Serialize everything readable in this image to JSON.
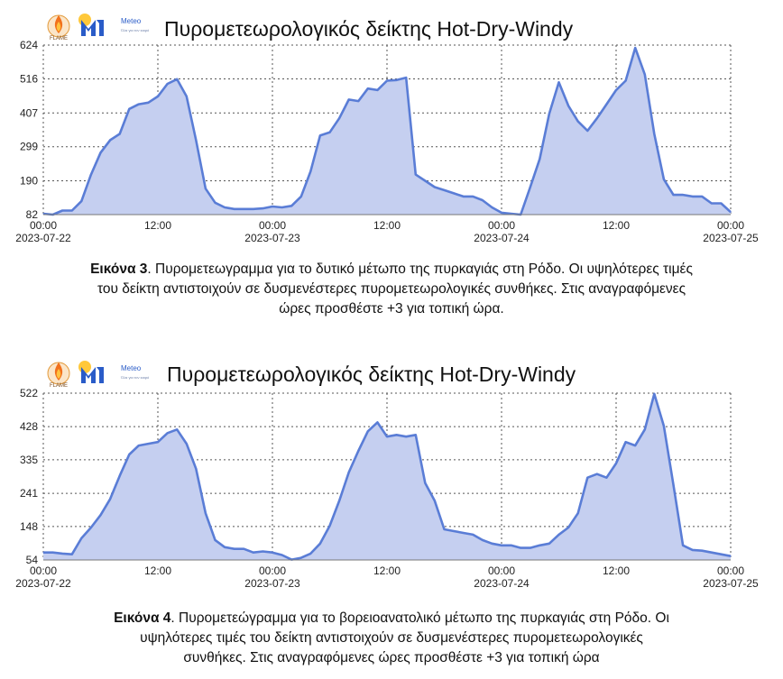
{
  "logo": {
    "flame_text": "FLAME",
    "meteo_text": "Meteo",
    "meteo_sub": "Όλα για τον καιρό"
  },
  "chart_data": [
    {
      "type": "area",
      "title": "Πυρομετεωρολογικός δείκτης Hot-Dry-Windy",
      "xlabel": "",
      "ylabel": "",
      "ylim": [
        82,
        624
      ],
      "yticks": [
        82,
        190,
        299,
        407,
        516,
        624
      ],
      "xlim": [
        0,
        72
      ],
      "xticks": [
        {
          "x": 0,
          "top": "00:00",
          "bottom": "2023-07-22"
        },
        {
          "x": 12,
          "top": "12:00",
          "bottom": ""
        },
        {
          "x": 24,
          "top": "00:00",
          "bottom": "2023-07-23"
        },
        {
          "x": 36,
          "top": "12:00",
          "bottom": ""
        },
        {
          "x": 48,
          "top": "00:00",
          "bottom": "2023-07-24"
        },
        {
          "x": 60,
          "top": "12:00",
          "bottom": ""
        },
        {
          "x": 72,
          "top": "00:00",
          "bottom": "2023-07-25"
        }
      ],
      "grid": true,
      "color": "#5a7dd6",
      "fill": "#c5cff0",
      "series": [
        {
          "x": [
            0,
            1,
            2,
            3,
            4,
            5,
            6,
            7,
            8,
            9,
            10,
            11,
            12,
            13,
            14,
            15,
            16,
            17,
            18,
            19,
            20,
            21,
            22,
            23,
            24,
            25,
            26,
            27,
            28,
            29,
            30,
            31,
            32,
            33,
            34,
            35,
            36,
            37,
            38,
            39,
            40,
            41,
            42,
            43,
            44,
            45,
            46,
            47,
            48,
            49,
            50,
            51,
            52,
            53,
            54,
            55,
            56,
            57,
            58,
            59,
            60,
            61,
            62,
            63,
            64,
            65,
            66,
            67,
            68,
            69,
            70,
            71,
            72
          ],
          "y": [
            85,
            82,
            95,
            95,
            125,
            210,
            280,
            320,
            340,
            420,
            435,
            440,
            460,
            500,
            515,
            460,
            320,
            165,
            120,
            105,
            100,
            100,
            100,
            102,
            108,
            105,
            110,
            140,
            220,
            335,
            345,
            390,
            450,
            445,
            485,
            480,
            510,
            512,
            520,
            210,
            190,
            170,
            160,
            150,
            140,
            140,
            128,
            105,
            88,
            85,
            82,
            170,
            260,
            405,
            505,
            430,
            380,
            350,
            390,
            435,
            480,
            510,
            615,
            530,
            340,
            195,
            145,
            145,
            140,
            140,
            118,
            118,
            90
          ]
        }
      ]
    },
    {
      "type": "area",
      "title": "Πυρομετεωρολογικός δείκτης Hot-Dry-Windy",
      "xlabel": "",
      "ylabel": "",
      "ylim": [
        54,
        522
      ],
      "yticks": [
        54,
        148,
        241,
        335,
        428,
        522
      ],
      "xlim": [
        0,
        72
      ],
      "xticks": [
        {
          "x": 0,
          "top": "00:00",
          "bottom": "2023-07-22"
        },
        {
          "x": 12,
          "top": "12:00",
          "bottom": ""
        },
        {
          "x": 24,
          "top": "00:00",
          "bottom": "2023-07-23"
        },
        {
          "x": 36,
          "top": "12:00",
          "bottom": ""
        },
        {
          "x": 48,
          "top": "00:00",
          "bottom": "2023-07-24"
        },
        {
          "x": 60,
          "top": "12:00",
          "bottom": ""
        },
        {
          "x": 72,
          "top": "00:00",
          "bottom": "2023-07-25"
        }
      ],
      "grid": true,
      "color": "#5a7dd6",
      "fill": "#c5cff0",
      "series": [
        {
          "x": [
            0,
            1,
            2,
            3,
            4,
            5,
            6,
            7,
            8,
            9,
            10,
            11,
            12,
            13,
            14,
            15,
            16,
            17,
            18,
            19,
            20,
            21,
            22,
            23,
            24,
            25,
            26,
            27,
            28,
            29,
            30,
            31,
            32,
            33,
            34,
            35,
            36,
            37,
            38,
            39,
            40,
            41,
            42,
            43,
            44,
            45,
            46,
            47,
            48,
            49,
            50,
            51,
            52,
            53,
            54,
            55,
            56,
            57,
            58,
            59,
            60,
            61,
            62,
            63,
            64,
            65,
            66,
            67,
            68,
            69,
            70,
            71,
            72
          ],
          "y": [
            75,
            75,
            72,
            70,
            115,
            145,
            180,
            225,
            290,
            350,
            375,
            380,
            385,
            410,
            420,
            380,
            310,
            185,
            110,
            90,
            85,
            85,
            75,
            78,
            75,
            68,
            55,
            60,
            72,
            100,
            150,
            220,
            300,
            360,
            415,
            440,
            400,
            405,
            400,
            405,
            270,
            220,
            140,
            135,
            130,
            125,
            110,
            100,
            95,
            95,
            88,
            88,
            95,
            100,
            125,
            145,
            185,
            285,
            295,
            285,
            325,
            385,
            375,
            420,
            520,
            430,
            265,
            95,
            82,
            80,
            75,
            70,
            65
          ]
        }
      ]
    }
  ],
  "captions": [
    {
      "label": "Εικόνα 3",
      "lines": [
        ". Πυρομετεωγραμμα για το δυτικό μέτωπο της πυρκαγιάς στη Ρόδο. Οι υψηλότερες τιμές",
        "του δείκτη αντιστοιχούν σε δυσμενέστερες πυρομετεωρολογικές συνθήκες. Στις αναγραφόμενες",
        "ώρες προσθέστε +3 για τοπική ώρα."
      ]
    },
    {
      "label": "Εικόνα 4",
      "lines": [
        ". Πυρομετεώγραμμα για το βορειοανατολικό μέτωπο της πυρκαγιάς στη Ρόδο. Οι",
        "υψηλότερες τιμές του δείκτη αντιστοιχούν σε δυσμενέστερες πυρομετεωρολογικές",
        "συνθήκες. Στις αναγραφόμενες ώρες προσθέστε +3 για τοπική ώρα"
      ]
    }
  ]
}
